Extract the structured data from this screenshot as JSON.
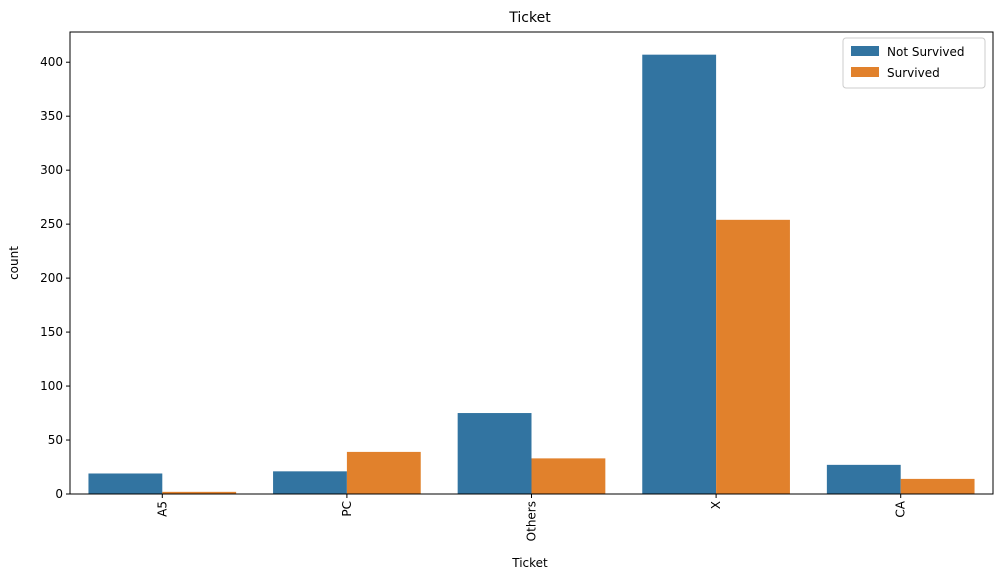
{
  "chart_data": {
    "type": "bar",
    "title": "Ticket",
    "xlabel": "Ticket",
    "ylabel": "count",
    "categories": [
      "A5",
      "PC",
      "Others",
      "X",
      "CA"
    ],
    "series": [
      {
        "name": "Not Survived",
        "color": "#3274a1",
        "values": [
          19,
          21,
          75,
          407,
          27
        ]
      },
      {
        "name": "Survived",
        "color": "#e1812c",
        "values": [
          2,
          39,
          33,
          254,
          14
        ]
      }
    ],
    "ylim": [
      0,
      428
    ],
    "yticks": [
      0,
      50,
      100,
      150,
      200,
      250,
      300,
      350,
      400
    ],
    "legend_position": "top-right",
    "grid": false,
    "xtick_rotation": 90
  }
}
